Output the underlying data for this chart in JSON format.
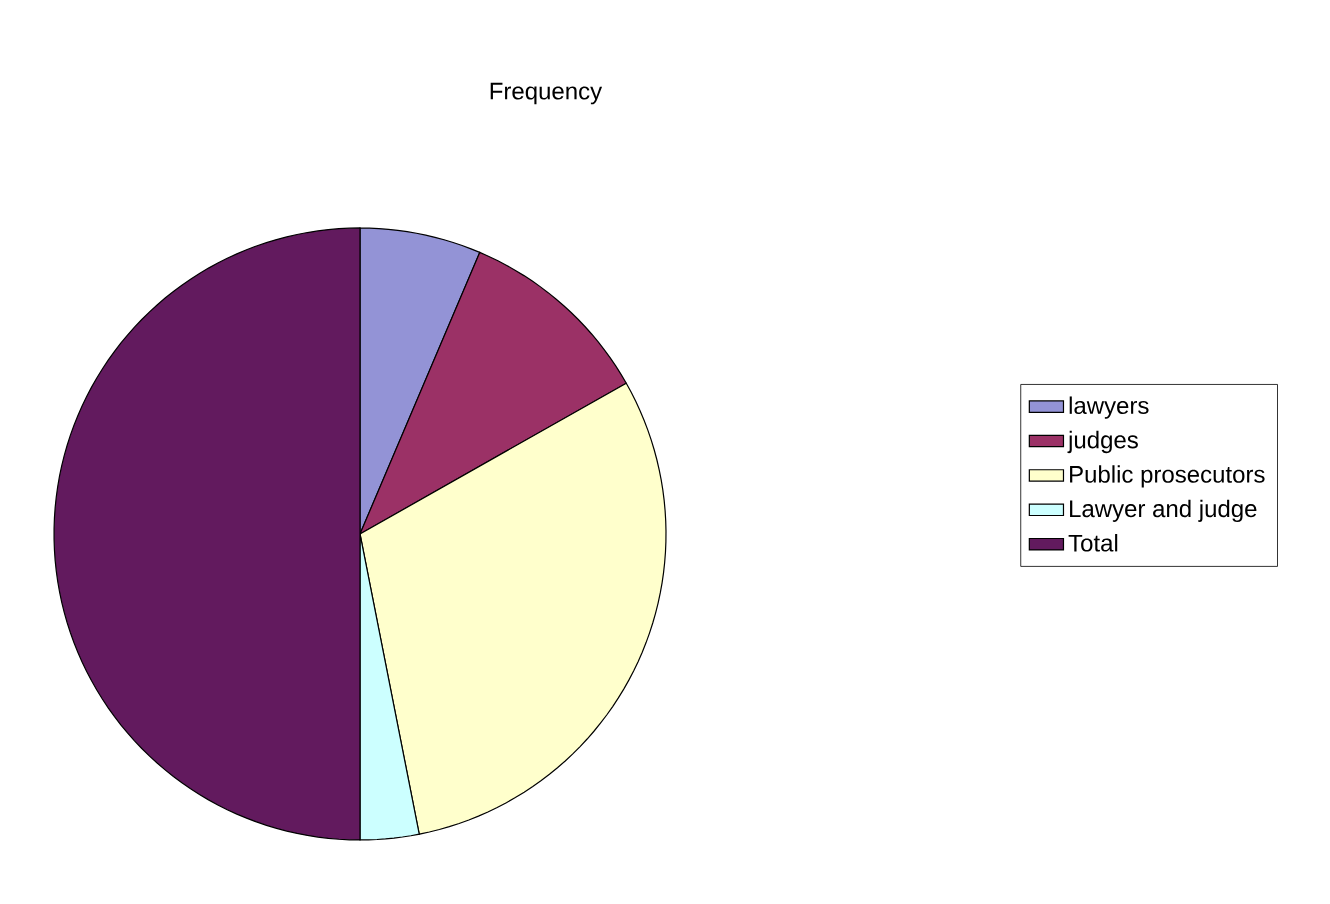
{
  "chart_data": {
    "type": "pie",
    "title": "Frequency",
    "categories": [
      "lawyers",
      "judges",
      "Public prosecutors",
      "Lawyer and judge",
      "Total"
    ],
    "values": [
      6.4,
      10.4,
      30.1,
      3.1,
      50
    ],
    "colors": [
      "#9393d6",
      "#9b3166",
      "#ffffcc",
      "#ccffff",
      "#621a5e"
    ],
    "legend": "right"
  }
}
